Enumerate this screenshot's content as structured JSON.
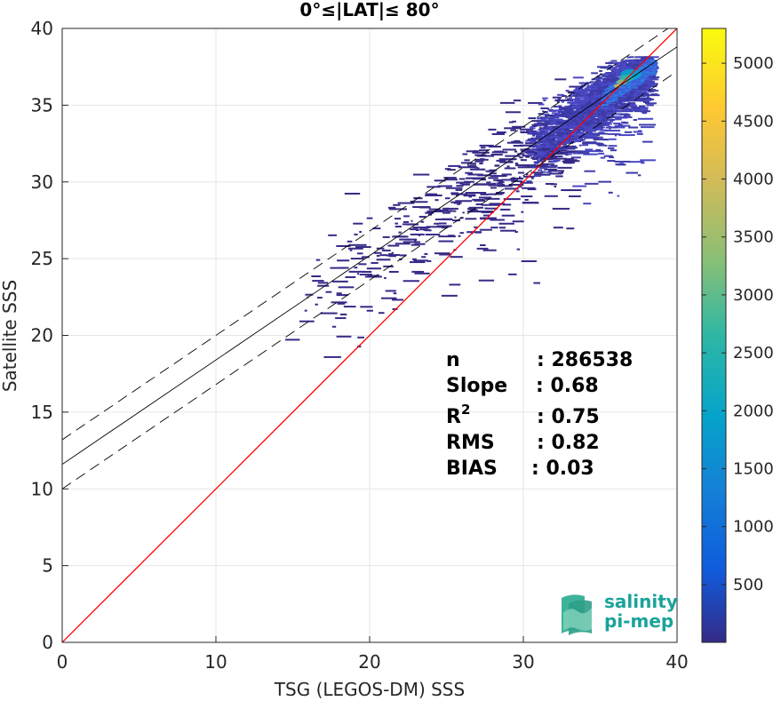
{
  "chart_data": {
    "type": "scatter",
    "subtype": "2d-histogram density scatter",
    "title": "0°≤|LAT|≤ 80°",
    "xlabel": "TSG (LEGOS-DM) SSS",
    "ylabel": "Satellite SSS",
    "xlim": [
      0,
      40
    ],
    "ylim": [
      0,
      40
    ],
    "xticks": [
      "0",
      "10",
      "20",
      "30",
      "40"
    ],
    "yticks": [
      "0",
      "5",
      "10",
      "15",
      "20",
      "25",
      "30",
      "35",
      "40"
    ],
    "grid": true,
    "colorbar": {
      "colormap": "parula",
      "range": [
        1,
        5300
      ],
      "ticks": [
        "500",
        "1000",
        "1500",
        "2000",
        "2500",
        "3000",
        "3500",
        "4000",
        "4500",
        "5000"
      ],
      "tick_values": [
        500,
        1000,
        1500,
        2000,
        2500,
        3000,
        3500,
        4000,
        4500,
        5000
      ]
    },
    "lines": [
      {
        "name": "one-to-one",
        "color": "#ff0000",
        "style": "solid",
        "x": [
          0,
          40
        ],
        "y": [
          0,
          40
        ]
      },
      {
        "name": "fit",
        "color": "#000000",
        "style": "solid",
        "x": [
          0,
          40
        ],
        "y": [
          11.6,
          38.8
        ]
      },
      {
        "name": "fit-upper",
        "color": "#000000",
        "style": "dashed",
        "x": [
          0,
          40
        ],
        "y": [
          13.2,
          40.4
        ]
      },
      {
        "name": "fit-lower",
        "color": "#000000",
        "style": "dashed",
        "x": [
          0,
          40
        ],
        "y": [
          10.0,
          37.2
        ]
      }
    ],
    "stats": [
      {
        "label": "n",
        "value": ": 286538"
      },
      {
        "label": "Slope",
        "value": ": 0.68"
      },
      {
        "label": "R",
        "sup": "2",
        "value": ": 0.75"
      },
      {
        "label": "RMS",
        "value": ": 0.82"
      },
      {
        "label": "BIAS",
        "value": ": 0.03"
      }
    ],
    "density_core": {
      "x_range": [
        30,
        38.4
      ],
      "trend": "y = 0.68x + 11.6",
      "peak_at": [
        37,
        37
      ]
    }
  },
  "logo": {
    "line1": "salinity",
    "line2": "pi-mep"
  }
}
